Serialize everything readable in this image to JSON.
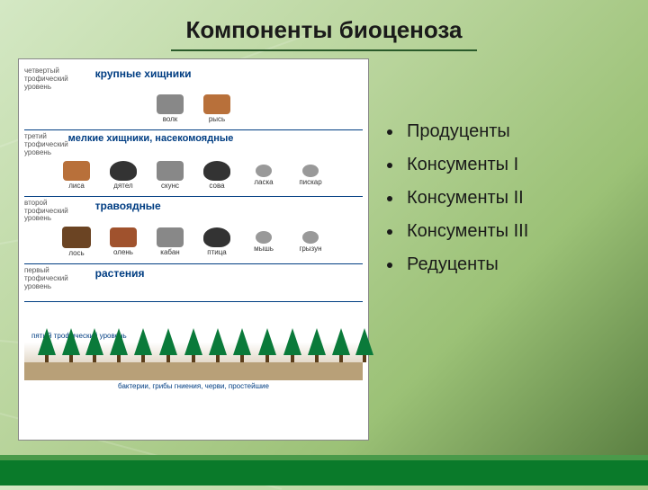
{
  "title": "Компоненты биоценоза",
  "diagram": {
    "levels": [
      {
        "label_line1": "четвертый",
        "label_line2": "трофический",
        "label_line3": "уровень",
        "title": "крупные хищники",
        "animals": [
          {
            "name": "волк",
            "css": "wolf"
          },
          {
            "name": "рысь",
            "css": "fox"
          }
        ]
      },
      {
        "label_line1": "третий",
        "label_line2": "трофический",
        "label_line3": "уровень",
        "title": "мелкие хищники, насекомоядные",
        "animals": [
          {
            "name": "лиса",
            "css": "fox"
          },
          {
            "name": "дятел",
            "css": "bird"
          },
          {
            "name": "скунс",
            "css": "wolf"
          },
          {
            "name": "сова",
            "css": "bird"
          },
          {
            "name": "ласка",
            "css": "mouse"
          },
          {
            "name": "пискар",
            "css": "mouse"
          }
        ]
      },
      {
        "label_line1": "второй",
        "label_line2": "трофический",
        "label_line3": "уровень",
        "title": "травоядные",
        "animals": [
          {
            "name": "лось",
            "css": "moose"
          },
          {
            "name": "олень",
            "css": "deer"
          },
          {
            "name": "кабан",
            "css": "wolf"
          },
          {
            "name": "птица",
            "css": "bird"
          },
          {
            "name": "мышь",
            "css": "mouse"
          },
          {
            "name": "грызун",
            "css": "mouse"
          }
        ]
      },
      {
        "label_line1": "первый",
        "label_line2": "трофический",
        "label_line3": "уровень",
        "title": "растения",
        "animals": []
      }
    ],
    "level5": "пятый трофический\nуровень",
    "bottom": "бактерии, грибы гниения, черви, простейшие",
    "forest": {
      "tree_positions": [
        15,
        42,
        68,
        95,
        122,
        150,
        178,
        205,
        232,
        260,
        288,
        315,
        342,
        368
      ],
      "tree_color": "#0a7a3a",
      "soil_color": "#b8a078"
    }
  },
  "components": [
    "Продуценты",
    "Консументы I",
    "Консументы II",
    "Консументы III",
    "Редуценты"
  ],
  "colors": {
    "accent": "#0a7a2a",
    "level_border": "#003d82",
    "title_text": "#1a1a1a"
  }
}
